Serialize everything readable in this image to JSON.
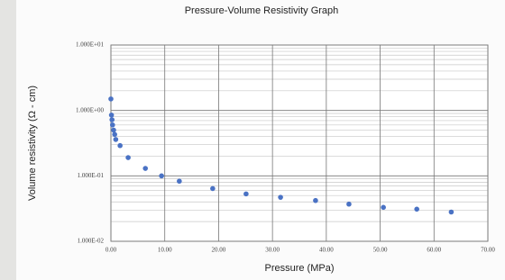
{
  "chart_data": {
    "type": "scatter",
    "title": "Pressure-Volume Resistivity Graph",
    "x_label": "Pressure (MPa)",
    "y_label": "Volume resistivity (Ω - cm)",
    "color": "#4a72c4",
    "log_y": true,
    "grid": true,
    "x": [
      0,
      0.1,
      0.2,
      0.3,
      0.5,
      0.7,
      0.9,
      1.7,
      3.2,
      6.4,
      9.4,
      12.7,
      18.9,
      25.1,
      31.5,
      38.0,
      44.2,
      50.6,
      56.8,
      63.2
    ],
    "values": [
      1.5,
      0.85,
      0.72,
      0.6,
      0.5,
      0.43,
      0.36,
      0.29,
      0.19,
      0.13,
      0.1,
      0.083,
      0.064,
      0.053,
      0.047,
      0.042,
      0.037,
      0.033,
      0.031,
      0.028
    ],
    "xlim": [
      0,
      70
    ],
    "ylim": [
      0.01,
      10
    ],
    "xticks": [
      {
        "value": 0,
        "label": "0.00"
      },
      {
        "value": 10,
        "label": "10.00"
      },
      {
        "value": 20,
        "label": "20.00"
      },
      {
        "value": 30,
        "label": "30.00"
      },
      {
        "value": 40,
        "label": "40.00"
      },
      {
        "value": 50,
        "label": "50.00"
      },
      {
        "value": 60,
        "label": "60.00"
      },
      {
        "value": 70,
        "label": "70.00"
      }
    ],
    "yticks": [
      {
        "value": 0.01,
        "label": "1.000E-02"
      },
      {
        "value": 0.1,
        "label": "1.000E-01"
      },
      {
        "value": 1,
        "label": "1.000E+00"
      },
      {
        "value": 10,
        "label": "1.000E+01"
      }
    ]
  }
}
